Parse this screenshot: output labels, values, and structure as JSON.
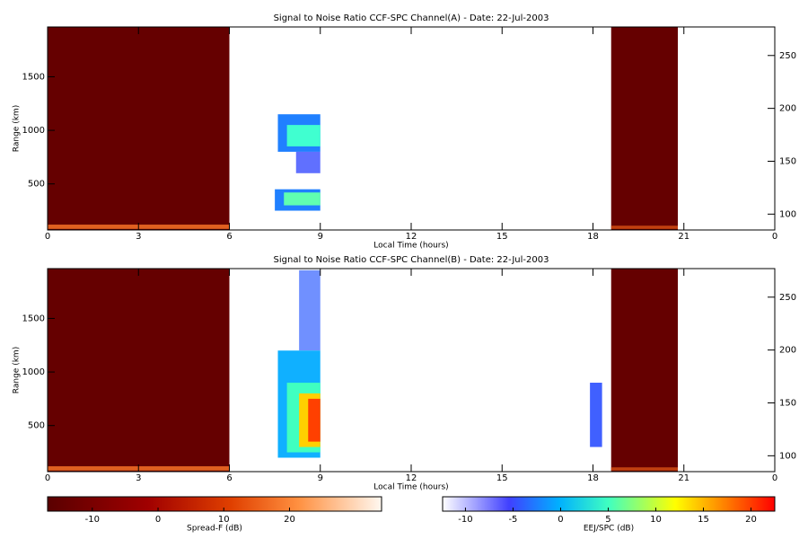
{
  "chart_data": [
    {
      "type": "heatmap",
      "title": "Signal to Noise Ratio CCF-SPC Channel(A) - Date: 22-Jul-2003",
      "x_label": "Local Time (hours)",
      "y_label": "Range (km)",
      "xlim": [
        0,
        24
      ],
      "xticks": [
        0,
        3,
        6,
        9,
        12,
        15,
        18,
        21,
        {
          "value": 24,
          "label": "0"
        }
      ],
      "ylim": [
        70,
        1965
      ],
      "yticks": [
        500,
        1000,
        1500
      ],
      "y2lim": [
        85,
        277
      ],
      "y2ticks": [
        100,
        150,
        200,
        250
      ],
      "regions": [
        {
          "x": [
            0,
            6
          ],
          "y": [
            70,
            1965
          ],
          "color": "#650000"
        },
        {
          "x": [
            18.6,
            20.8
          ],
          "y": [
            70,
            1965
          ],
          "color": "#650000"
        },
        {
          "x": [
            0,
            6
          ],
          "y": [
            80,
            120
          ],
          "color": "#e06020"
        },
        {
          "x": [
            18.6,
            20.8
          ],
          "y": [
            80,
            110
          ],
          "color": "#c04010"
        },
        {
          "x": [
            7.6,
            9
          ],
          "y": [
            800,
            1150
          ],
          "color": "#2080ff"
        },
        {
          "x": [
            7.9,
            9
          ],
          "y": [
            850,
            1050
          ],
          "color": "#40ffd0"
        },
        {
          "x": [
            8.2,
            9
          ],
          "y": [
            600,
            800
          ],
          "color": "#6070ff"
        },
        {
          "x": [
            7.5,
            9
          ],
          "y": [
            250,
            450
          ],
          "color": "#2080ff"
        },
        {
          "x": [
            7.8,
            9
          ],
          "y": [
            300,
            420
          ],
          "color": "#60ffb0"
        }
      ]
    },
    {
      "type": "heatmap",
      "title": "Signal to Noise Ratio CCF-SPC Channel(B) - Date: 22-Jul-2003",
      "x_label": "Local Time (hours)",
      "y_label": "Range (km)",
      "xlim": [
        0,
        24
      ],
      "xticks": [
        0,
        3,
        6,
        9,
        12,
        15,
        18,
        21,
        {
          "value": 24,
          "label": "0"
        }
      ],
      "ylim": [
        70,
        1965
      ],
      "yticks": [
        500,
        1000,
        1500
      ],
      "y2lim": [
        85,
        277
      ],
      "y2ticks": [
        100,
        150,
        200,
        250
      ],
      "regions": [
        {
          "x": [
            0,
            6
          ],
          "y": [
            70,
            1965
          ],
          "color": "#650000"
        },
        {
          "x": [
            18.6,
            20.8
          ],
          "y": [
            70,
            1965
          ],
          "color": "#650000"
        },
        {
          "x": [
            0,
            6
          ],
          "y": [
            80,
            120
          ],
          "color": "#e06020"
        },
        {
          "x": [
            18.6,
            20.8
          ],
          "y": [
            80,
            110
          ],
          "color": "#c04010"
        },
        {
          "x": [
            8.3,
            9
          ],
          "y": [
            1200,
            1950
          ],
          "color": "#7090ff"
        },
        {
          "x": [
            7.6,
            9
          ],
          "y": [
            200,
            1200
          ],
          "color": "#10b0ff"
        },
        {
          "x": [
            7.9,
            9
          ],
          "y": [
            250,
            900
          ],
          "color": "#40ffc0"
        },
        {
          "x": [
            8.3,
            9
          ],
          "y": [
            300,
            800
          ],
          "color": "#ffd000"
        },
        {
          "x": [
            8.6,
            9
          ],
          "y": [
            350,
            750
          ],
          "color": "#ff4000"
        },
        {
          "x": [
            17.9,
            18.3
          ],
          "y": [
            300,
            900
          ],
          "color": "#4060ff"
        }
      ]
    }
  ],
  "colorbars": [
    {
      "label": "Spread-F (dB)",
      "lim": [
        -16.8,
        34
      ],
      "ticks": [
        -10,
        0,
        10,
        20
      ]
    },
    {
      "label": "EEJ/SPC (dB)",
      "lim": [
        -12.4,
        22.5
      ],
      "ticks": [
        -10,
        -5,
        0,
        5,
        10,
        15,
        20
      ]
    }
  ]
}
